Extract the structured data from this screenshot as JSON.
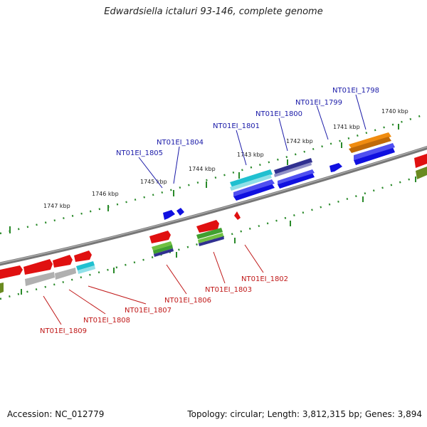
{
  "title": "Edwardsiella ictaluri 93-146, complete genome",
  "footer": {
    "accession": "Accession: NC_012779",
    "topology": "Topology: circular; Length: 3,812,315 bp; Genes: 3,894"
  },
  "colors": {
    "blue": "#1010e0",
    "red": "#e01010",
    "cyan": "#20c0d0",
    "gray": "#b0b0b0",
    "navy": "#303090",
    "orange": "#f08c10",
    "olive": "#6a8a20",
    "green": "#40a030",
    "backbone": "#777777",
    "tick": "#2a8a2a"
  },
  "scale_labels": [
    "1740 kbp",
    "1741 kbp",
    "1742 kbp",
    "1743 kbp",
    "1744 kbp",
    "1745 kbp",
    "1746 kbp",
    "1747 kbp"
  ],
  "genes_top": [
    "NT01EI_1798",
    "NT01EI_1799",
    "NT01EI_1800",
    "NT01EI_1801",
    "NT01EI_1804",
    "NT01EI_1805"
  ],
  "genes_bottom": [
    "NT01EI_1802",
    "NT01EI_1803",
    "NT01EI_1806",
    "NT01EI_1807",
    "NT01EI_1808",
    "NT01EI_1809"
  ]
}
